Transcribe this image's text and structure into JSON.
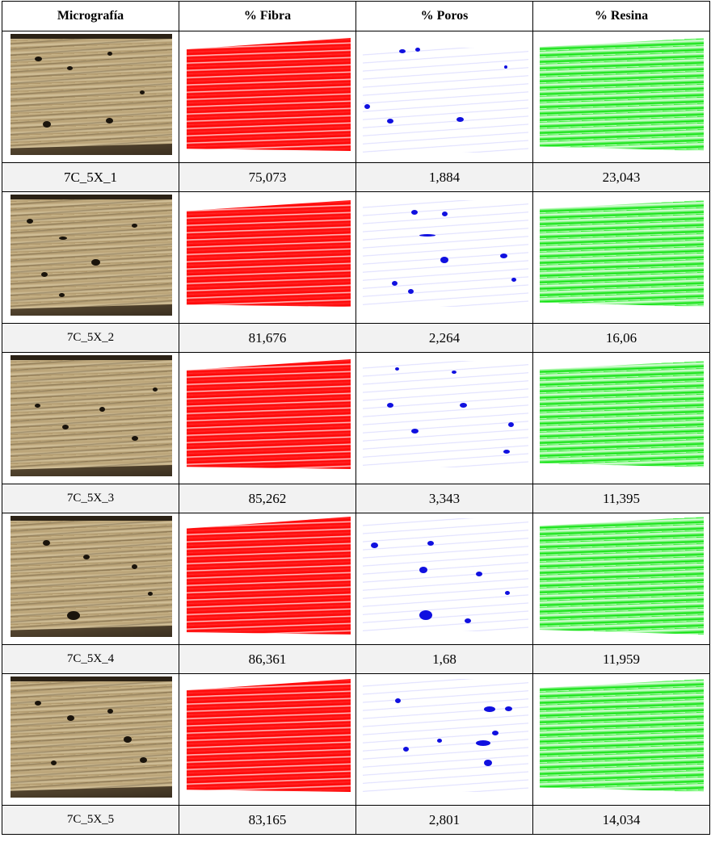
{
  "headers": {
    "micrografia": "Micrografía",
    "fibra": "% Fibra",
    "poros": "% Poros",
    "resina": "% Resina"
  },
  "rows": [
    {
      "label": "7C_5X_1",
      "fibra": "75,073",
      "poros": "1,884",
      "resina": "23,043"
    },
    {
      "label": "7C_5X_2",
      "fibra": "81,676",
      "poros": "2,264",
      "resina": "16,06"
    },
    {
      "label": "7C_5X_3",
      "fibra": "85,262",
      "poros": "3,343",
      "resina": "11,395"
    },
    {
      "label": "7C_5X_4",
      "fibra": "86,361",
      "poros": "1,68",
      "resina": "11,959"
    },
    {
      "label": "7C_5X_5",
      "fibra": "83,165",
      "poros": "2,801",
      "resina": "14,034"
    }
  ],
  "colors": {
    "fibra": "#ff0000",
    "poros": "#0000ff",
    "resina": "#00e000",
    "value_row_bg": "#f2f2f2"
  }
}
